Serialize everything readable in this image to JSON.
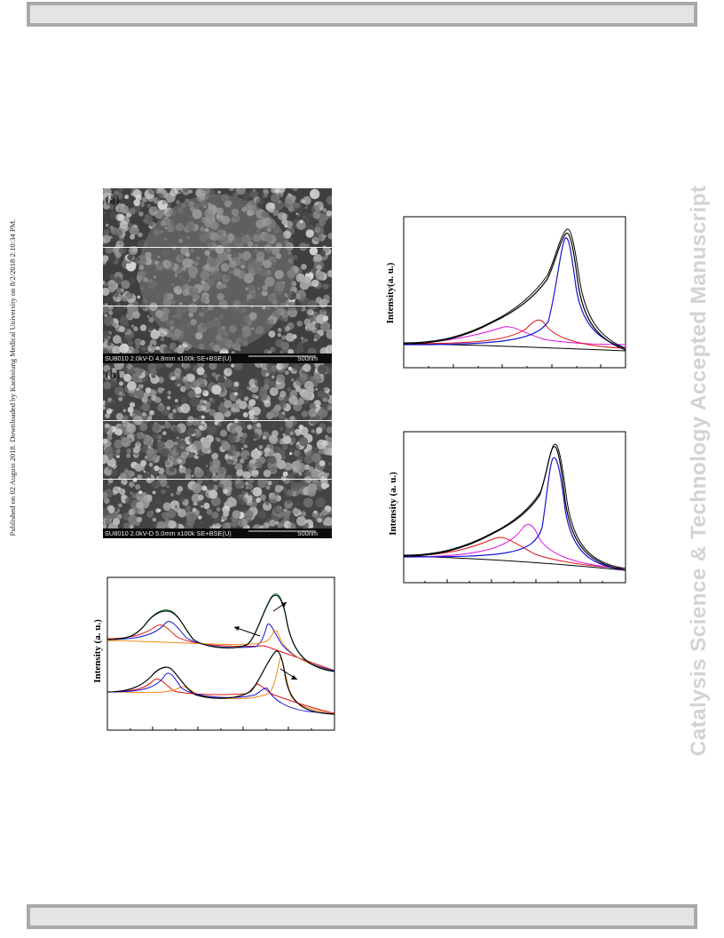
{
  "page": {
    "published_note": "Published on 02 August 2018. Downloaded by Kaohsiung Medical University on 8/2/2018 2:10:34 PM.",
    "watermark": "Catalysis Science & Technology Accepted Manuscript"
  },
  "sem_images": [
    {
      "label": "(a)",
      "info": "SU8010 2.0kV-D 4.8mm x100k SE+BSE(U)",
      "scale": "500nm"
    },
    {
      "label": "(b)",
      "info": "SU8010 2.0kV-D 5.0mm x100k SE+BSE(U)",
      "scale": "500nm"
    }
  ],
  "spectra": [
    {
      "ylabel": "Intensity (a. u.)"
    },
    {
      "ylabel": "Intensity(a. u.)"
    },
    {
      "ylabel": "Intensity (a. u.)"
    }
  ],
  "colors": {
    "bar_fill": "#e4e4e4",
    "bar_border": "#a9a9a9",
    "watermark": "#d3d3d3",
    "fit_black": "#000000",
    "peak_blue": "#1414d2",
    "peak_red": "#e01010",
    "peak_magenta": "#e010e0",
    "peak_orange": "#f08a1c",
    "envelope_green": "#1a7a3a"
  }
}
